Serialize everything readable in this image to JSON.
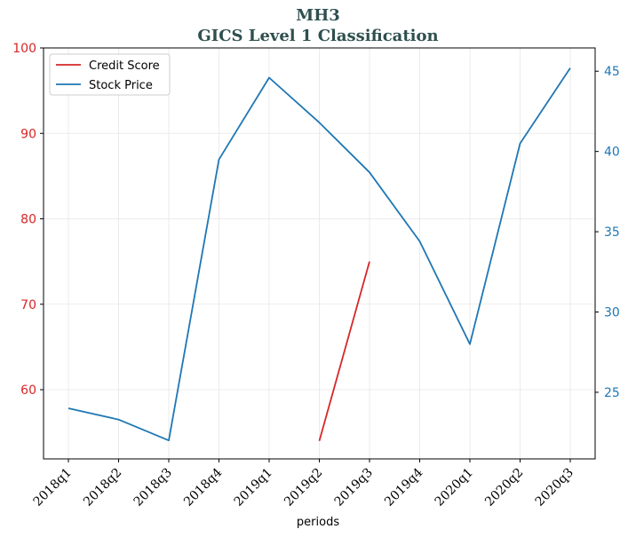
{
  "chart_data": {
    "type": "line",
    "title": "MH3",
    "subtitle": "GICS Level 1 Classification",
    "xlabel": "periods",
    "ylabel_left": "",
    "ylabel_right": "",
    "categories": [
      "2018q1",
      "2018q2",
      "2018q3",
      "2018q4",
      "2019q1",
      "2019q2",
      "2019q3",
      "2019q4",
      "2020q1",
      "2020q2",
      "2020q3"
    ],
    "ylim_left": [
      51.9,
      100
    ],
    "yticks_left": [
      60,
      70,
      80,
      90,
      100
    ],
    "ylim_right": [
      20.85,
      46.45
    ],
    "yticks_right": [
      25,
      30,
      35,
      40,
      45
    ],
    "grid": true,
    "legend_position": "top-left",
    "series": [
      {
        "name": "Credit Score",
        "axis": "left",
        "color": "#d62728",
        "values": [
          null,
          null,
          null,
          null,
          null,
          54,
          75,
          null,
          null,
          null,
          null
        ]
      },
      {
        "name": "Stock Price",
        "axis": "right",
        "color": "#1f77b4",
        "values": [
          24.0,
          23.3,
          22.0,
          39.5,
          44.6,
          41.8,
          38.7,
          34.4,
          28.0,
          40.5,
          45.2
        ]
      }
    ]
  }
}
